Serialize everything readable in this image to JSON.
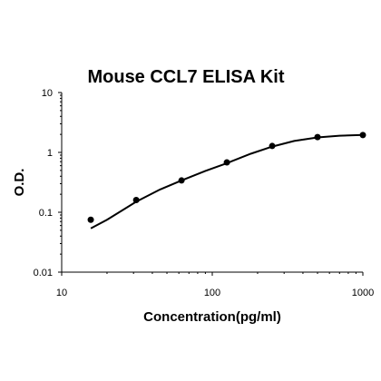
{
  "chart_data": {
    "type": "scatter",
    "title": "Mouse CCL7 ELISA Kit",
    "xlabel": "Concentration(pg/ml)",
    "ylabel": "O.D.",
    "xscale": "log",
    "yscale": "log",
    "xlim": [
      10,
      1000
    ],
    "ylim": [
      0.01,
      10
    ],
    "x_ticks": [
      "10",
      "100",
      "1000"
    ],
    "y_ticks": [
      "0.01",
      "0.1",
      "1",
      "10"
    ],
    "grid": false,
    "legend": "none",
    "points": [
      {
        "x": 15.6,
        "y": 0.075
      },
      {
        "x": 31.25,
        "y": 0.16
      },
      {
        "x": 62.5,
        "y": 0.34
      },
      {
        "x": 125,
        "y": 0.68
      },
      {
        "x": 250,
        "y": 1.28
      },
      {
        "x": 500,
        "y": 1.8
      },
      {
        "x": 1000,
        "y": 1.95
      }
    ],
    "fit_curve": [
      {
        "x": 15.6,
        "y": 0.054
      },
      {
        "x": 20,
        "y": 0.075
      },
      {
        "x": 31.25,
        "y": 0.15
      },
      {
        "x": 45,
        "y": 0.24
      },
      {
        "x": 62.5,
        "y": 0.34
      },
      {
        "x": 90,
        "y": 0.49
      },
      {
        "x": 125,
        "y": 0.66
      },
      {
        "x": 180,
        "y": 0.95
      },
      {
        "x": 250,
        "y": 1.25
      },
      {
        "x": 350,
        "y": 1.55
      },
      {
        "x": 500,
        "y": 1.78
      },
      {
        "x": 700,
        "y": 1.9
      },
      {
        "x": 1000,
        "y": 1.96
      }
    ],
    "colors": {
      "marks": "#000000",
      "axes": "#000000"
    }
  }
}
